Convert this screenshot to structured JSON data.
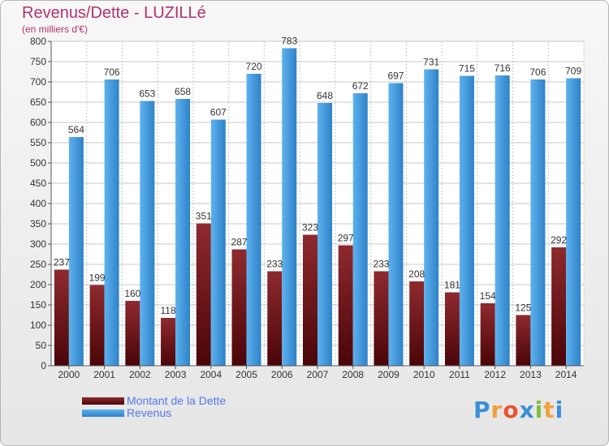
{
  "title": "Revenus/Dette - LUZILLé",
  "subtitle": "(en milliers d'€)",
  "chart_data": {
    "type": "bar",
    "categories": [
      "2000",
      "2001",
      "2002",
      "2003",
      "2004",
      "2005",
      "2006",
      "2007",
      "2008",
      "2009",
      "2010",
      "2011",
      "2012",
      "2013",
      "2014"
    ],
    "series": [
      {
        "name": "Montant de la Dette",
        "color": "#7a1a22",
        "values": [
          237,
          199,
          160,
          118,
          351,
          287,
          233,
          323,
          297,
          233,
          208,
          181,
          154,
          125,
          292
        ]
      },
      {
        "name": "Revenus",
        "color": "#4da6e6",
        "values": [
          564,
          706,
          653,
          658,
          607,
          720,
          783,
          648,
          672,
          697,
          731,
          715,
          716,
          706,
          709
        ]
      }
    ],
    "ylim": [
      0,
      800
    ],
    "ytick_step": 50,
    "grid": true,
    "legend": "bottom-left"
  },
  "logo": {
    "letters": [
      "P",
      "r",
      "o",
      "x",
      "i",
      "t",
      "i"
    ],
    "colors": [
      "#3b8fd8",
      "#f2a13a",
      "#e9532f",
      "#3b8fd8",
      "#7cbf3f",
      "#f2a13a",
      "#3b8fd8"
    ]
  }
}
